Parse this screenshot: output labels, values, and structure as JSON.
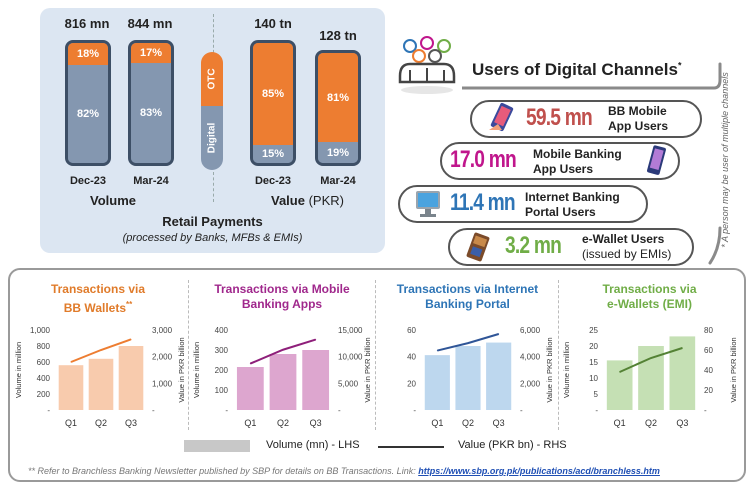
{
  "retail": {
    "title": "Retail Payments",
    "subtitle": "(processed by Banks, MFBs & EMIs)",
    "volume_label": "Volume",
    "value_label": "Value",
    "value_unit": "(PKR)",
    "otc_label": "OTC",
    "digital_label": "Digital",
    "colors": {
      "otc": "#ed7d31",
      "digital": "#8497b0"
    },
    "volume": [
      {
        "period": "Dec-23",
        "total": "816 mn",
        "otc": "18%",
        "digital": "82%",
        "otc_pct": 18
      },
      {
        "period": "Mar-24",
        "total": "844 mn",
        "otc": "17%",
        "digital": "83%",
        "otc_pct": 17
      }
    ],
    "value": [
      {
        "period": "Dec-23",
        "total": "140 tn",
        "otc": "85%",
        "digital": "15%",
        "otc_pct": 85
      },
      {
        "period": "Mar-24",
        "total": "128 tn",
        "otc": "81%",
        "digital": "19%",
        "otc_pct": 81
      }
    ]
  },
  "users": {
    "title": "Users of Digital Channels",
    "title_mark": "*",
    "note": "* A person may be user of multiple channels",
    "rows": [
      {
        "value": "59.5 mn",
        "label1": "BB Mobile",
        "label2": "App Users",
        "color": "#c0504d",
        "icon": "mobile-phone-icon"
      },
      {
        "value": "17.0 mn",
        "label1": "Mobile Banking",
        "label2": "App Users",
        "color": "#c0168c",
        "icon": "smartphone-icon"
      },
      {
        "value": "11.4 mn",
        "label1": "Internet Banking",
        "label2": "Portal Users",
        "color": "#2e75b6",
        "icon": "computer-icon"
      },
      {
        "value": "3.2 mn",
        "label1": "e-Wallet Users",
        "label2": "(issued by EMIs)",
        "color": "#70ad47",
        "icon": "wallet-icon"
      }
    ]
  },
  "legend": {
    "bars": "Volume (mn) - LHS",
    "line": "Value (PKR bn) - RHS"
  },
  "footnote": {
    "text": "** Refer to Branchless Banking Newsletter published by SBP for details on BB Transactions. Link: ",
    "link": "https://www.sbp.org.pk/publications/acd/branchless.htm"
  },
  "chart_data": [
    {
      "type": "bar",
      "title": "Transactions via",
      "title2": "BB Wallets",
      "title_mark": "**",
      "title_color": "#e07b2a",
      "categories": [
        "Q1",
        "Q2",
        "Q3"
      ],
      "series": [
        {
          "values": [
            560,
            640,
            800
          ],
          "axis": "left",
          "color": "#f8cbad"
        },
        {
          "values": [
            1800,
            2250,
            2650
          ],
          "axis": "right",
          "type": "line",
          "color": "#ed7d31"
        }
      ],
      "ylabel": "Volume in million",
      "y2label": "Value in PKR billion",
      "ylim": [
        0,
        1000
      ],
      "y2lim": [
        0,
        3000
      ],
      "yticks": [
        "-",
        "200",
        "400",
        "600",
        "800",
        "1,000"
      ],
      "y2ticks": [
        "-",
        "1,000",
        "2,000",
        "3,000"
      ],
      "grid": false
    },
    {
      "type": "bar",
      "title": "Transactions via Mobile",
      "title2": "Banking Apps",
      "title_mark": "",
      "title_color": "#a0288c",
      "categories": [
        "Q1",
        "Q2",
        "Q3"
      ],
      "series": [
        {
          "values": [
            215,
            280,
            300
          ],
          "axis": "left",
          "color": "#dda6cf"
        },
        {
          "values": [
            8700,
            11300,
            13200
          ],
          "axis": "right",
          "type": "line",
          "color": "#8e1f7a"
        }
      ],
      "ylabel": "Volume in million",
      "y2label": "Value in PKR billion",
      "ylim": [
        0,
        400
      ],
      "y2lim": [
        0,
        15000
      ],
      "yticks": [
        "-",
        "100",
        "200",
        "300",
        "400"
      ],
      "y2ticks": [
        "-",
        "5,000",
        "10,000",
        "15,000"
      ],
      "grid": false
    },
    {
      "type": "bar",
      "title": "Transactions via Internet",
      "title2": "Banking Portal",
      "title_mark": "",
      "title_color": "#2e75b6",
      "categories": [
        "Q1",
        "Q2",
        "Q3"
      ],
      "series": [
        {
          "values": [
            48,
            56,
            59
          ],
          "axis": "left",
          "color": "#bdd7ee"
        },
        {
          "values": [
            5200,
            5850,
            6650
          ],
          "axis": "right",
          "type": "line",
          "color": "#2f5597"
        }
      ],
      "ylabel": "",
      "y2label": "Value in PKR billion",
      "ylim": [
        0,
        70
      ],
      "y2lim": [
        0,
        7000
      ],
      "yticks": [
        "-",
        "20",
        "40",
        "60"
      ],
      "y2ticks": [
        "-",
        "2,000",
        "4,000",
        "6,000"
      ],
      "grid": false
    },
    {
      "type": "bar",
      "title": "Transactions via",
      "title2": "e-Wallets (EMI)",
      "title_mark": "",
      "title_color": "#70ad47",
      "categories": [
        "Q1",
        "Q2",
        "Q3"
      ],
      "series": [
        {
          "values": [
            15.5,
            20,
            23
          ],
          "axis": "left",
          "color": "#c5e0b4"
        },
        {
          "values": [
            38,
            52,
            62
          ],
          "axis": "right",
          "type": "line",
          "color": "#548235"
        }
      ],
      "ylabel": "Volume in million",
      "y2label": "Value in PKR billion",
      "ylim": [
        0,
        25
      ],
      "y2lim": [
        0,
        80
      ],
      "yticks": [
        "-",
        "5",
        "10",
        "15",
        "20",
        "25"
      ],
      "y2ticks": [
        "-",
        "20",
        "40",
        "60",
        "80"
      ],
      "grid": false
    }
  ]
}
